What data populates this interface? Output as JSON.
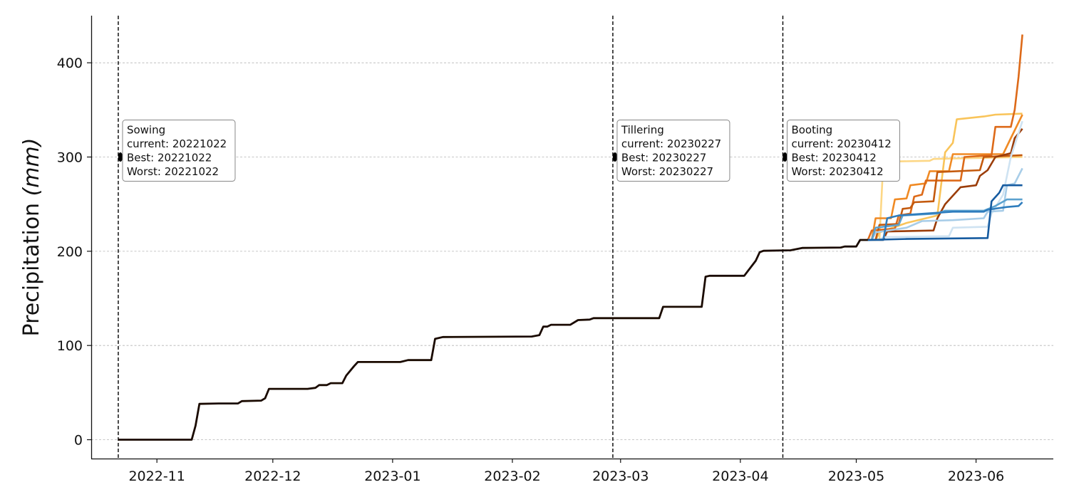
{
  "chart_data": {
    "type": "line",
    "title": "",
    "xlabel": "",
    "ylabel": "Precipitation (mm)",
    "ylabel_parts": {
      "main": "Precipitation ",
      "unit": "(mm)"
    },
    "xlim": [
      "2022-10-15",
      "2023-06-21"
    ],
    "ylim": [
      -20,
      450
    ],
    "grid": "y-dashed",
    "x_ticks": [
      "2022-11",
      "2022-12",
      "2023-01",
      "2023-02",
      "2023-03",
      "2023-04",
      "2023-05",
      "2023-06"
    ],
    "x_tick_dates": [
      "2022-11-01",
      "2022-12-01",
      "2023-01-01",
      "2023-02-01",
      "2023-03-01",
      "2023-04-01",
      "2023-05-01",
      "2023-06-01"
    ],
    "y_ticks": [
      0,
      100,
      200,
      300,
      400
    ],
    "stages": [
      {
        "date": "2022-10-22",
        "lines": [
          "Sowing",
          "current: 20221022",
          "Best: 20221022",
          "Worst: 20221022"
        ]
      },
      {
        "date": "2023-02-27",
        "lines": [
          "Tillering",
          "current: 20230227",
          "Best: 20230227",
          "Worst: 20230227"
        ]
      },
      {
        "date": "2023-04-12",
        "lines": [
          "Booting",
          "current: 20230412",
          "Best: 20230412",
          "Worst: 20230412"
        ]
      }
    ],
    "stage_marker_y": 300,
    "observed": {
      "color": "#1a0a00",
      "points": [
        [
          "2022-10-22",
          0
        ],
        [
          "2022-11-10",
          0
        ],
        [
          "2022-11-11",
          15
        ],
        [
          "2022-11-12",
          38
        ],
        [
          "2022-11-17",
          38.5
        ],
        [
          "2022-11-22",
          38.5
        ],
        [
          "2022-11-23",
          41
        ],
        [
          "2022-11-28",
          41.5
        ],
        [
          "2022-11-29",
          44
        ],
        [
          "2022-11-30",
          54
        ],
        [
          "2022-12-10",
          54
        ],
        [
          "2022-12-12",
          55
        ],
        [
          "2022-12-13",
          58
        ],
        [
          "2022-12-15",
          58
        ],
        [
          "2022-12-16",
          60
        ],
        [
          "2022-12-19",
          60
        ],
        [
          "2022-12-20",
          68
        ],
        [
          "2022-12-22",
          78
        ],
        [
          "2022-12-23",
          82.5
        ],
        [
          "2022-12-28",
          82.5
        ],
        [
          "2023-01-03",
          82.5
        ],
        [
          "2023-01-05",
          84.5
        ],
        [
          "2023-01-11",
          84.5
        ],
        [
          "2023-01-12",
          107
        ],
        [
          "2023-01-14",
          109
        ],
        [
          "2023-02-06",
          109.5
        ],
        [
          "2023-02-08",
          111
        ],
        [
          "2023-02-09",
          120
        ],
        [
          "2023-02-10",
          120
        ],
        [
          "2023-02-11",
          122
        ],
        [
          "2023-02-16",
          122
        ],
        [
          "2023-02-18",
          127
        ],
        [
          "2023-02-21",
          127.5
        ],
        [
          "2023-02-22",
          129
        ],
        [
          "2023-03-11",
          129
        ],
        [
          "2023-03-12",
          141
        ],
        [
          "2023-03-22",
          141
        ],
        [
          "2023-03-23",
          173
        ],
        [
          "2023-03-24",
          174
        ],
        [
          "2023-04-02",
          174
        ],
        [
          "2023-04-05",
          190
        ],
        [
          "2023-04-06",
          199
        ],
        [
          "2023-04-07",
          200.5
        ],
        [
          "2023-04-14",
          201
        ],
        [
          "2023-04-17",
          203.5
        ],
        [
          "2023-04-27",
          204
        ],
        [
          "2023-04-28",
          205
        ],
        [
          "2023-05-01",
          205
        ],
        [
          "2023-05-02",
          212
        ],
        [
          "2023-05-04",
          212
        ]
      ]
    },
    "forecast_start": [
      "2023-05-04",
      212
    ],
    "forecast_series": [
      {
        "color": "#fdd785",
        "points": [
          [
            "2023-05-07",
            212
          ],
          [
            "2023-05-08",
            295
          ],
          [
            "2023-05-20",
            296
          ],
          [
            "2023-05-21",
            298
          ],
          [
            "2023-06-13",
            300
          ]
        ]
      },
      {
        "color": "#f9c45a",
        "points": [
          [
            "2023-05-06",
            212
          ],
          [
            "2023-05-07",
            220
          ],
          [
            "2023-05-14",
            230
          ],
          [
            "2023-05-22",
            238
          ],
          [
            "2023-05-24",
            305
          ],
          [
            "2023-05-26",
            315
          ],
          [
            "2023-05-27",
            340
          ],
          [
            "2023-06-03",
            343
          ],
          [
            "2023-06-06",
            345
          ],
          [
            "2023-06-13",
            346
          ]
        ]
      },
      {
        "color": "#f08a24",
        "points": [
          [
            "2023-05-05",
            212
          ],
          [
            "2023-05-06",
            235
          ],
          [
            "2023-05-10",
            235
          ],
          [
            "2023-05-11",
            255
          ],
          [
            "2023-05-14",
            256
          ],
          [
            "2023-05-15",
            270
          ],
          [
            "2023-05-19",
            272
          ],
          [
            "2023-05-20",
            285
          ],
          [
            "2023-05-25",
            285
          ],
          [
            "2023-05-26",
            303
          ],
          [
            "2023-06-08",
            303
          ],
          [
            "2023-06-10",
            320
          ],
          [
            "2023-06-13",
            345
          ]
        ]
      },
      {
        "color": "#dd6a19",
        "points": [
          [
            "2023-05-04",
            212
          ],
          [
            "2023-05-05",
            222
          ],
          [
            "2023-05-11",
            224
          ],
          [
            "2023-05-12",
            238
          ],
          [
            "2023-05-15",
            240
          ],
          [
            "2023-05-16",
            258
          ],
          [
            "2023-05-18",
            260
          ],
          [
            "2023-05-19",
            275
          ],
          [
            "2023-05-28",
            275
          ],
          [
            "2023-05-29",
            300
          ],
          [
            "2023-06-05",
            302
          ],
          [
            "2023-06-06",
            332
          ],
          [
            "2023-06-10",
            332
          ],
          [
            "2023-06-11",
            350
          ],
          [
            "2023-06-12",
            385
          ],
          [
            "2023-06-13",
            430
          ]
        ]
      },
      {
        "color": "#c45a0e",
        "points": [
          [
            "2023-05-06",
            212
          ],
          [
            "2023-05-07",
            228
          ],
          [
            "2023-05-12",
            229
          ],
          [
            "2023-05-13",
            245
          ],
          [
            "2023-05-15",
            246
          ],
          [
            "2023-05-16",
            252
          ],
          [
            "2023-05-21",
            253
          ],
          [
            "2023-05-22",
            284
          ],
          [
            "2023-06-02",
            286
          ],
          [
            "2023-06-03",
            300
          ],
          [
            "2023-06-13",
            302
          ]
        ]
      },
      {
        "color": "#9b3d09",
        "points": [
          [
            "2023-05-08",
            212
          ],
          [
            "2023-05-09",
            221
          ],
          [
            "2023-05-21",
            222
          ],
          [
            "2023-05-22",
            235
          ],
          [
            "2023-05-24",
            250
          ],
          [
            "2023-05-28",
            268
          ],
          [
            "2023-06-01",
            270
          ],
          [
            "2023-06-02",
            280
          ],
          [
            "2023-06-04",
            286
          ],
          [
            "2023-06-06",
            300
          ],
          [
            "2023-06-10",
            304
          ],
          [
            "2023-06-11",
            320
          ],
          [
            "2023-06-13",
            330
          ]
        ]
      },
      {
        "color": "#cfe3f2",
        "points": [
          [
            "2023-05-07",
            212
          ],
          [
            "2023-05-08",
            215
          ],
          [
            "2023-05-25",
            216
          ],
          [
            "2023-05-26",
            225
          ],
          [
            "2023-06-04",
            226
          ],
          [
            "2023-06-05",
            240
          ],
          [
            "2023-06-08",
            260
          ],
          [
            "2023-06-10",
            300
          ],
          [
            "2023-06-13",
            338
          ]
        ]
      },
      {
        "color": "#a8cde8",
        "points": [
          [
            "2023-05-05",
            212
          ],
          [
            "2023-05-06",
            220
          ],
          [
            "2023-05-14",
            225
          ],
          [
            "2023-05-18",
            232
          ],
          [
            "2023-05-26",
            233
          ],
          [
            "2023-06-03",
            235
          ],
          [
            "2023-06-04",
            242
          ],
          [
            "2023-06-08",
            243
          ],
          [
            "2023-06-09",
            270
          ],
          [
            "2023-06-11",
            272
          ],
          [
            "2023-06-13",
            288
          ]
        ]
      },
      {
        "color": "#5ca2cf",
        "points": [
          [
            "2023-05-05",
            212
          ],
          [
            "2023-05-06",
            225
          ],
          [
            "2023-05-12",
            228
          ],
          [
            "2023-05-13",
            238
          ],
          [
            "2023-05-22",
            240
          ],
          [
            "2023-05-24",
            243
          ],
          [
            "2023-06-03",
            243
          ],
          [
            "2023-06-06",
            248
          ],
          [
            "2023-06-09",
            255
          ],
          [
            "2023-06-13",
            255
          ]
        ]
      },
      {
        "color": "#2f7dbd",
        "points": [
          [
            "2023-05-08",
            212
          ],
          [
            "2023-05-09",
            235
          ],
          [
            "2023-05-12",
            238
          ],
          [
            "2023-05-26",
            242
          ],
          [
            "2023-06-03",
            242
          ],
          [
            "2023-06-04",
            244
          ],
          [
            "2023-06-09",
            247
          ],
          [
            "2023-06-12",
            248
          ],
          [
            "2023-06-13",
            252
          ]
        ]
      },
      {
        "color": "#165ba0",
        "points": [
          [
            "2023-05-04",
            212
          ],
          [
            "2023-05-14",
            213
          ],
          [
            "2023-06-04",
            214
          ],
          [
            "2023-06-05",
            253
          ],
          [
            "2023-06-07",
            262
          ],
          [
            "2023-06-08",
            270
          ],
          [
            "2023-06-13",
            270
          ]
        ]
      }
    ]
  }
}
